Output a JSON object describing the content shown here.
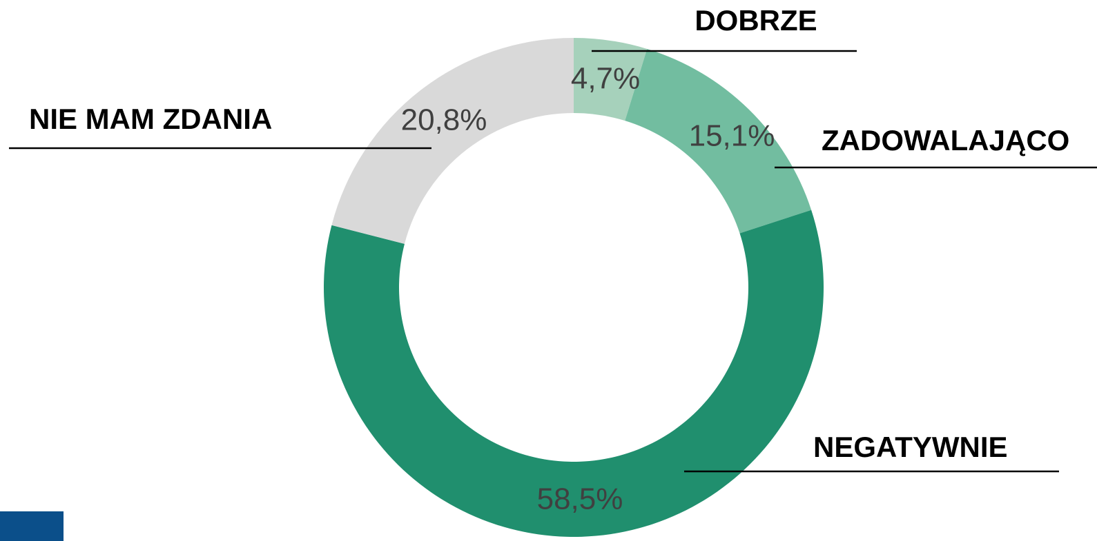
{
  "chart_data": {
    "type": "donut",
    "categories": [
      "DOBRZE",
      "ZADOWALAJĄCO",
      "NEGATYWNIE",
      "NIE MAM ZDANIA"
    ],
    "values": [
      4.7,
      15.1,
      58.5,
      20.8
    ],
    "value_labels": [
      "4,7%",
      "15,1%",
      "58,5%",
      "20,8%"
    ],
    "colors": [
      "#a6d1bb",
      "#72bda0",
      "#208f6e",
      "#d9d9d9"
    ]
  }
}
